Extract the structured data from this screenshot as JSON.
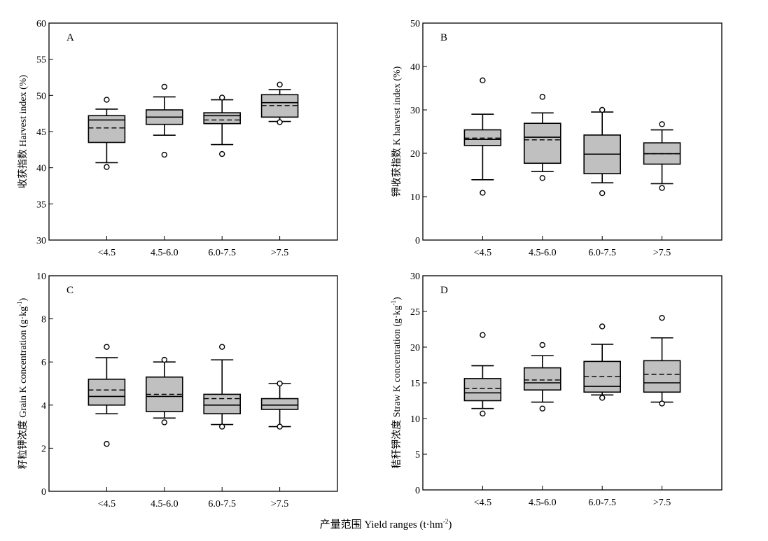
{
  "figure": {
    "x_axis_title": "产量范围 Yield ranges (t·hm",
    "x_axis_title_sup": "-2",
    "x_axis_title_end": ")"
  },
  "chart_data": [
    {
      "type": "box",
      "panel": "A",
      "categories": [
        "<4.5",
        "4.5-6.0",
        "6.0-7.5",
        ">7.5"
      ],
      "ylabel": "收获指数 Harvest index (%)",
      "ylim": [
        30,
        60
      ],
      "yticks": [
        30,
        35,
        40,
        45,
        50,
        55,
        60
      ],
      "boxes": [
        {
          "whisker_low": 40.7,
          "q1": 43.5,
          "median": 46.6,
          "mean": 45.5,
          "q3": 47.2,
          "whisker_high": 48.1,
          "outliers": [
            49.4,
            40.1
          ]
        },
        {
          "whisker_low": 44.5,
          "q1": 46.0,
          "median": 47.0,
          "mean": 47.0,
          "q3": 48.0,
          "whisker_high": 49.8,
          "outliers": [
            51.2,
            41.8
          ]
        },
        {
          "whisker_low": 43.2,
          "q1": 46.1,
          "median": 47.2,
          "mean": 46.6,
          "q3": 47.6,
          "whisker_high": 49.4,
          "outliers": [
            49.7,
            41.9
          ]
        },
        {
          "whisker_low": 46.4,
          "q1": 47.0,
          "median": 49.0,
          "mean": 48.6,
          "q3": 50.1,
          "whisker_high": 50.8,
          "outliers": [
            51.5,
            46.3
          ]
        }
      ]
    },
    {
      "type": "box",
      "panel": "B",
      "categories": [
        "<4.5",
        "4.5-6.0",
        "6.0-7.5",
        ">7.5"
      ],
      "ylabel": "钾收获指数 K harvest index (%)",
      "ylim": [
        0,
        50
      ],
      "yticks": [
        0,
        10,
        20,
        30,
        40,
        50
      ],
      "boxes": [
        {
          "whisker_low": 13.9,
          "q1": 21.8,
          "median": 23.2,
          "mean": 23.5,
          "q3": 25.4,
          "whisker_high": 29.0,
          "outliers": [
            36.8,
            10.9
          ]
        },
        {
          "whisker_low": 15.8,
          "q1": 17.7,
          "median": 23.7,
          "mean": 23.1,
          "q3": 26.9,
          "whisker_high": 29.3,
          "outliers": [
            33.0,
            14.3
          ]
        },
        {
          "whisker_low": 13.2,
          "q1": 15.3,
          "median": 19.8,
          "mean": 19.8,
          "q3": 24.2,
          "whisker_high": 29.5,
          "outliers": [
            30.0,
            10.8
          ]
        },
        {
          "whisker_low": 13.0,
          "q1": 17.5,
          "median": 19.9,
          "mean": 19.9,
          "q3": 22.4,
          "whisker_high": 25.4,
          "outliers": [
            26.7,
            12.0
          ]
        }
      ]
    },
    {
      "type": "box",
      "panel": "C",
      "categories": [
        "<4.5",
        "4.5-6.0",
        "6.0-7.5",
        ">7.5"
      ],
      "ylabel": "籽粒钾浓度 Grain K concentration (g·kg",
      "ylabel_sup": "-1",
      "ylabel_end": ")",
      "ylim": [
        0,
        10
      ],
      "yticks": [
        0,
        2,
        4,
        6,
        8,
        10
      ],
      "boxes": [
        {
          "whisker_low": 3.6,
          "q1": 4.0,
          "median": 4.4,
          "mean": 4.7,
          "q3": 5.2,
          "whisker_high": 6.2,
          "outliers": [
            6.7,
            2.2
          ]
        },
        {
          "whisker_low": 3.4,
          "q1": 3.7,
          "median": 4.4,
          "mean": 4.5,
          "q3": 5.3,
          "whisker_high": 6.0,
          "outliers": [
            6.1,
            3.2
          ]
        },
        {
          "whisker_low": 3.1,
          "q1": 3.6,
          "median": 4.0,
          "mean": 4.3,
          "q3": 4.5,
          "whisker_high": 6.1,
          "outliers": [
            6.7,
            3.0
          ]
        },
        {
          "whisker_low": 3.0,
          "q1": 3.8,
          "median": 4.0,
          "mean": 4.0,
          "q3": 4.3,
          "whisker_high": 5.0,
          "outliers": [
            5.0,
            3.0
          ]
        }
      ]
    },
    {
      "type": "box",
      "panel": "D",
      "categories": [
        "<4.5",
        "4.5-6.0",
        "6.0-7.5",
        ">7.5"
      ],
      "ylabel": "秸秆钾浓度 Straw K concentration (g·kg",
      "ylabel_sup": "-1",
      "ylabel_end": ")",
      "ylim": [
        0,
        30
      ],
      "yticks": [
        0,
        5,
        10,
        15,
        20,
        25,
        30
      ],
      "boxes": [
        {
          "whisker_low": 11.4,
          "q1": 12.5,
          "median": 13.6,
          "mean": 14.2,
          "q3": 15.6,
          "whisker_high": 17.4,
          "outliers": [
            21.7,
            10.7
          ]
        },
        {
          "whisker_low": 12.3,
          "q1": 14.0,
          "median": 15.0,
          "mean": 15.4,
          "q3": 17.1,
          "whisker_high": 18.8,
          "outliers": [
            20.3,
            11.4
          ]
        },
        {
          "whisker_low": 13.3,
          "q1": 13.7,
          "median": 14.5,
          "mean": 15.9,
          "q3": 18.0,
          "whisker_high": 20.4,
          "outliers": [
            22.9,
            12.9
          ]
        },
        {
          "whisker_low": 12.3,
          "q1": 13.7,
          "median": 15.0,
          "mean": 16.2,
          "q3": 18.1,
          "whisker_high": 21.3,
          "outliers": [
            24.1,
            12.1
          ]
        }
      ]
    }
  ]
}
